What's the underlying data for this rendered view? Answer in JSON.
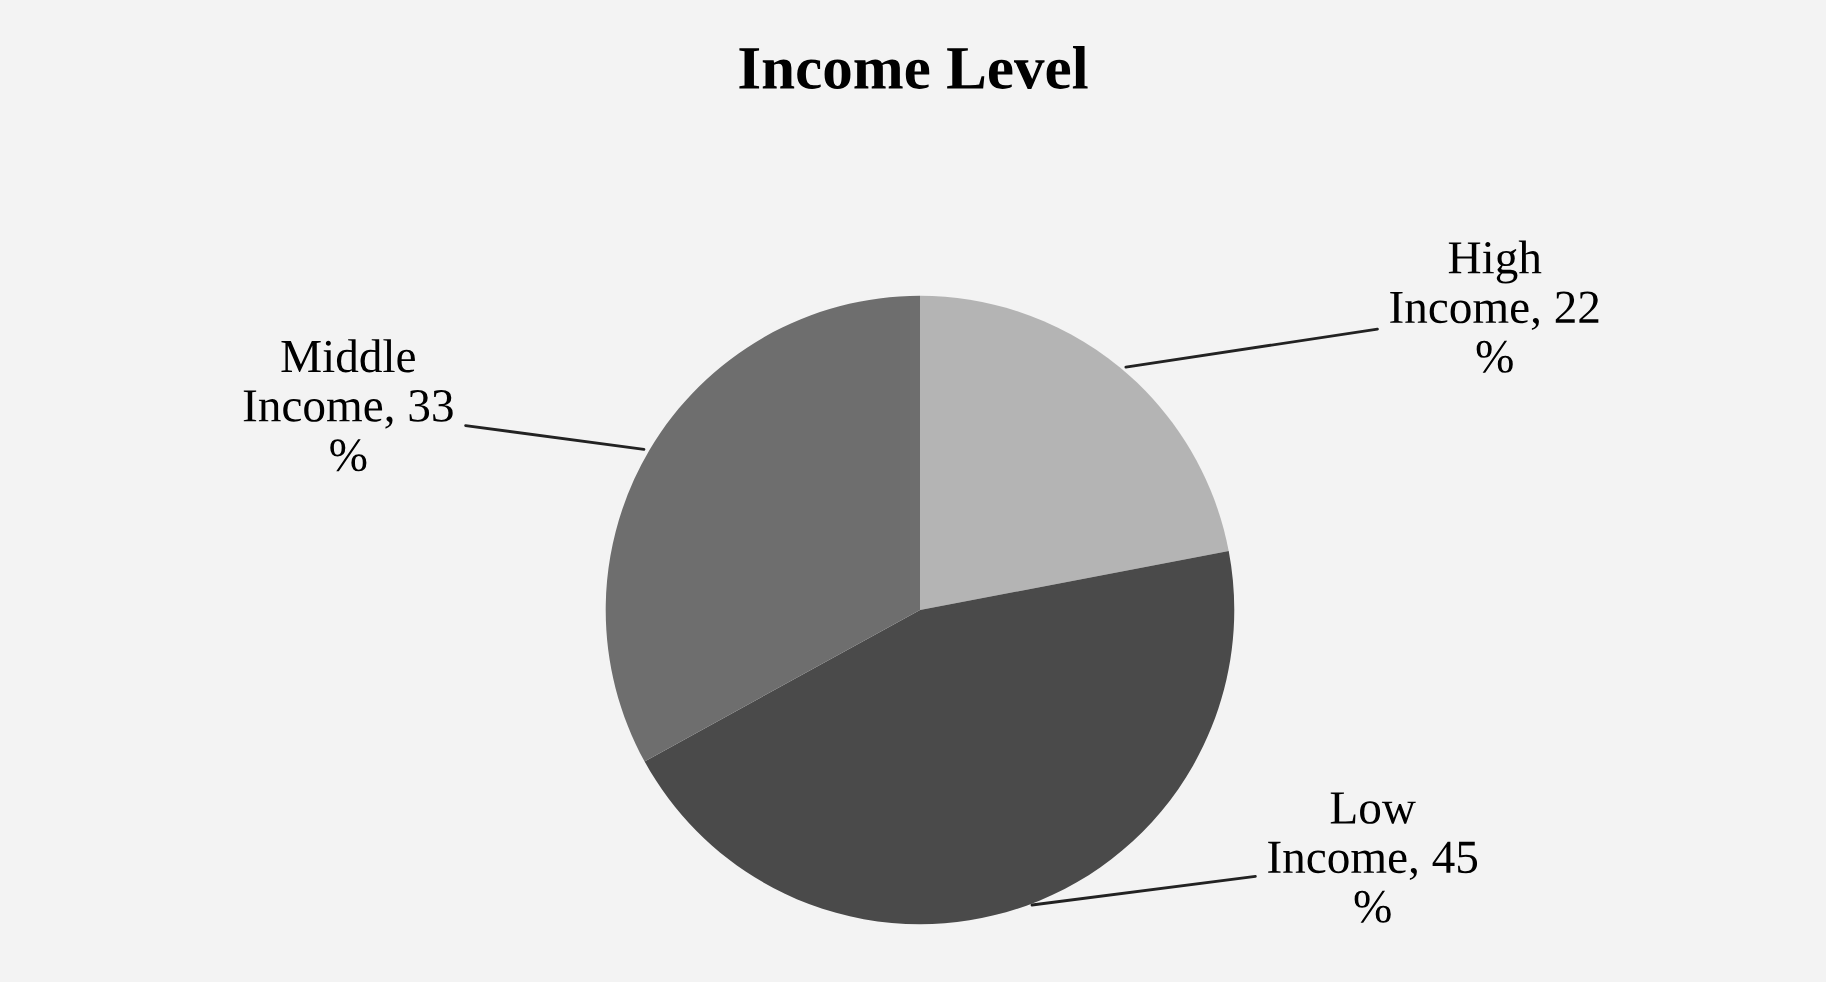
{
  "chart_data": {
    "type": "pie",
    "title": "Income Level",
    "categories": [
      "High\nIncome, 22\n%",
      "Low\nIncome, 45\n%",
      "Middle\nIncome, 33\n%"
    ],
    "values": [
      22,
      45,
      33
    ],
    "colors": [
      "#b4b4b4",
      "#4a4a4a",
      "#6e6e6e"
    ],
    "legend": false
  }
}
